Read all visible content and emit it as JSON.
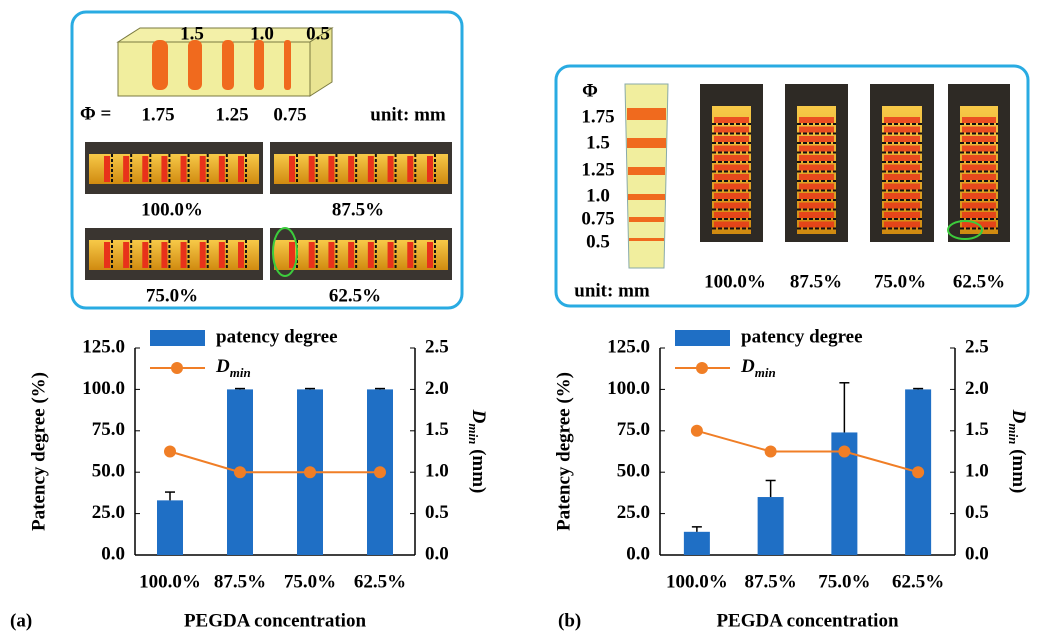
{
  "chart_data": [
    {
      "type": "bar",
      "panel_label": "(a)",
      "xlabel": "PEGDA concentration",
      "ylabel": "Patency degree (%)",
      "y2label": {
        "main": "D",
        "sub": "min",
        "unit": " (mm)"
      },
      "categories": [
        "100.0%",
        "87.5%",
        "75.0%",
        "62.5%"
      ],
      "series": [
        {
          "name": "patency degree",
          "type": "bar",
          "color": "#1f6fc5",
          "values": [
            33,
            100,
            100,
            100
          ],
          "errors": [
            5,
            0.5,
            0.5,
            0.5
          ]
        },
        {
          "name": "D",
          "name_sub": "min",
          "type": "line",
          "axis": "y2",
          "color": "#f07e26",
          "values": [
            1.25,
            1.0,
            1.0,
            1.0
          ]
        }
      ],
      "ylim": [
        0,
        125
      ],
      "yticks": [
        {
          "value": 0,
          "label": "0.0"
        },
        {
          "value": 25,
          "label": "25.0"
        },
        {
          "value": 50,
          "label": "50.0"
        },
        {
          "value": 75,
          "label": "75.0"
        },
        {
          "value": 100,
          "label": "100.0"
        },
        {
          "value": 125,
          "label": "125.0"
        }
      ],
      "y2lim": [
        0,
        2.5
      ],
      "y2ticks": [
        {
          "value": 0,
          "label": "0.0"
        },
        0.5,
        {
          "value": 1,
          "label": "1.0"
        },
        1.5,
        {
          "value": 2,
          "label": "2.0"
        },
        2.5
      ],
      "legend": "top"
    },
    {
      "type": "bar",
      "panel_label": "(b)",
      "xlabel": "PEGDA concentration",
      "ylabel": "Patency degree (%)",
      "y2label": {
        "main": "D",
        "sub": "min",
        "unit": " (mm)"
      },
      "categories": [
        "100.0%",
        "87.5%",
        "75.0%",
        "62.5%"
      ],
      "series": [
        {
          "name": "patency degree",
          "type": "bar",
          "color": "#1f6fc5",
          "values": [
            14,
            35,
            74,
            100
          ],
          "errors": [
            3,
            10,
            30,
            0.5
          ]
        },
        {
          "name": "D",
          "name_sub": "min",
          "type": "line",
          "axis": "y2",
          "color": "#f07e26",
          "values": [
            1.5,
            1.25,
            1.25,
            1.0
          ]
        }
      ],
      "ylim": [
        0,
        125
      ],
      "yticks": [
        {
          "value": 0,
          "label": "0.0"
        },
        {
          "value": 25,
          "label": "25.0"
        },
        {
          "value": 50,
          "label": "50.0"
        },
        {
          "value": 75,
          "label": "75.0"
        },
        {
          "value": 100,
          "label": "100.0"
        },
        {
          "value": 125,
          "label": "125.0"
        }
      ],
      "y2lim": [
        0,
        2.5
      ],
      "y2ticks": [
        {
          "value": 0,
          "label": "0.0"
        },
        0.5,
        {
          "value": 1,
          "label": "1.0"
        },
        1.5,
        {
          "value": 2,
          "label": "2.0"
        },
        2.5
      ],
      "legend": "top"
    }
  ],
  "illustrations": {
    "a": {
      "top_labels": [
        "1.5",
        "1.0",
        "0.5"
      ],
      "phi": "Φ =",
      "bottom_labels": [
        "1.75",
        "1.25",
        "0.75"
      ],
      "unit": "unit: mm",
      "photo_labels": [
        "100.0%",
        "87.5%",
        "75.0%",
        "62.5%"
      ]
    },
    "b": {
      "phi": "Φ",
      "diameters": [
        "1.75",
        "1.5",
        "1.25",
        "1.0",
        "0.75",
        "0.5"
      ],
      "unit": "unit: mm",
      "photo_labels": [
        "100.0%",
        "87.5%",
        "75.0%",
        "62.5%"
      ]
    }
  }
}
